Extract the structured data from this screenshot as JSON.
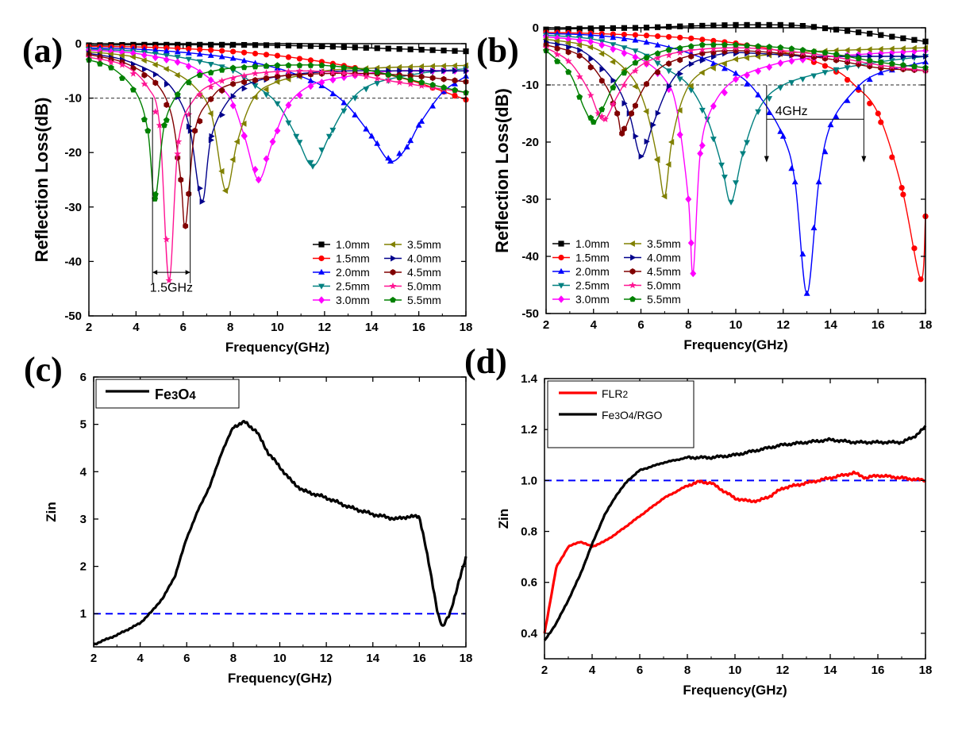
{
  "chart_data": [
    {
      "panel": "(a)",
      "type": "line",
      "xlabel": "Frequency(GHz)",
      "ylabel": "Reflection Loss(dB)",
      "xlim": [
        2,
        18
      ],
      "ylim": [
        -50,
        0
      ],
      "xticks": [
        "2",
        "4",
        "6",
        "8",
        "10",
        "12",
        "14",
        "16",
        "18"
      ],
      "yticks": [
        "0",
        "-10",
        "-20",
        "-30",
        "-40",
        "-50"
      ],
      "ref_line": -10,
      "annotation": "1.5GHz",
      "series": [
        {
          "name": "1.0mm",
          "color": "#000000",
          "marker": "square",
          "x": [
            2,
            4,
            6,
            8,
            10,
            12,
            14,
            16,
            18
          ],
          "y": [
            -0.3,
            -0.2,
            -0.2,
            -0.2,
            -0.3,
            -0.5,
            -0.8,
            -1.1,
            -1.4
          ]
        },
        {
          "name": "1.5mm",
          "color": "#ff0000",
          "marker": "circle",
          "x": [
            2,
            4,
            6,
            8,
            10,
            12,
            14,
            16,
            18
          ],
          "y": [
            -0.5,
            -0.6,
            -0.9,
            -1.4,
            -2.2,
            -3.4,
            -5.0,
            -7.2,
            -10.3
          ]
        },
        {
          "name": "2.0mm",
          "color": "#0000ff",
          "marker": "triangle-up",
          "x": [
            2,
            4,
            6,
            8,
            10,
            11,
            12,
            13,
            14,
            14.8,
            15.5,
            16,
            17,
            18
          ],
          "y": [
            -0.8,
            -1.0,
            -1.6,
            -2.6,
            -4.5,
            -6.0,
            -8.0,
            -11.5,
            -17,
            -21.6,
            -19,
            -15,
            -9,
            -6
          ]
        },
        {
          "name": "2.5mm",
          "color": "#008080",
          "marker": "triangle-down",
          "x": [
            2,
            4,
            6,
            8,
            9,
            10,
            10.8,
            11.5,
            12.2,
            13,
            14,
            16,
            18
          ],
          "y": [
            -1.0,
            -1.4,
            -2.6,
            -4.6,
            -7.5,
            -11,
            -17,
            -22.5,
            -17,
            -11,
            -7.5,
            -5.5,
            -4.6
          ]
        },
        {
          "name": "3.0mm",
          "color": "#ff00ff",
          "marker": "diamond",
          "x": [
            2,
            4,
            6,
            7,
            8,
            8.6,
            9.2,
            9.8,
            10.5,
            11.5,
            13,
            15,
            18
          ],
          "y": [
            -1.2,
            -1.8,
            -3.6,
            -6,
            -10,
            -17,
            -25,
            -18,
            -11,
            -7.5,
            -6,
            -5,
            -5
          ]
        },
        {
          "name": "3.5mm",
          "color": "#808000",
          "marker": "triangle-left",
          "x": [
            2,
            4,
            5.5,
            6.5,
            7.2,
            7.8,
            8.3,
            9,
            10,
            12,
            14,
            16,
            18
          ],
          "y": [
            -1.5,
            -2.5,
            -5,
            -8,
            -13,
            -27,
            -18,
            -10,
            -7,
            -5,
            -4.5,
            -4.2,
            -4
          ]
        },
        {
          "name": "4.0mm",
          "color": "#00008b",
          "marker": "triangle-right",
          "x": [
            2,
            3.5,
            5,
            5.8,
            6.3,
            6.8,
            7.2,
            8,
            9,
            11,
            13,
            15,
            18
          ],
          "y": [
            -1.8,
            -3,
            -6,
            -10,
            -16,
            -29,
            -17,
            -10,
            -7,
            -5.5,
            -5,
            -5,
            -5
          ]
        },
        {
          "name": "4.5mm",
          "color": "#800000",
          "marker": "hexagon",
          "x": [
            2,
            3.5,
            4.8,
            5.5,
            5.9,
            6.1,
            6.5,
            7.2,
            8,
            10,
            12,
            14,
            16,
            18
          ],
          "y": [
            -2,
            -3.5,
            -7,
            -13,
            -25,
            -33.5,
            -16,
            -10,
            -7.5,
            -6,
            -5.5,
            -5.5,
            -6,
            -7
          ]
        },
        {
          "name": "5.0mm",
          "color": "#ff1493",
          "marker": "star",
          "x": [
            2,
            3.5,
            4.5,
            5,
            5.4,
            5.8,
            6.5,
            7.5,
            9,
            11,
            13,
            15,
            18
          ],
          "y": [
            -2.5,
            -4,
            -8,
            -15,
            -43.5,
            -18,
            -10,
            -7,
            -5.5,
            -5,
            -5.5,
            -7,
            -9
          ]
        },
        {
          "name": "5.5mm",
          "color": "#008000",
          "marker": "pentagon",
          "x": [
            2,
            3,
            4,
            4.5,
            4.8,
            5.2,
            5.8,
            6.5,
            8,
            10,
            12,
            14,
            16,
            18
          ],
          "y": [
            -3,
            -4.5,
            -9,
            -16,
            -28.5,
            -15,
            -9,
            -6,
            -4.5,
            -4,
            -4,
            -5,
            -7,
            -9
          ]
        }
      ]
    },
    {
      "panel": "(b)",
      "type": "line",
      "xlabel": "Frequency(GHz)",
      "ylabel": "Reflection Loss(dB)",
      "xlim": [
        2,
        18
      ],
      "ylim": [
        -50,
        0
      ],
      "xticks": [
        "2",
        "4",
        "6",
        "8",
        "10",
        "12",
        "14",
        "16",
        "18"
      ],
      "yticks": [
        "0",
        "-10",
        "-20",
        "-30",
        "-40",
        "-50"
      ],
      "ref_line": -10,
      "annotation": "4GHz",
      "series": [
        {
          "name": "1.0mm",
          "color": "#000000",
          "marker": "square",
          "x": [
            2,
            4,
            6,
            8,
            10,
            12,
            13,
            14,
            16,
            18
          ],
          "y": [
            -0.3,
            -0.1,
            0,
            0.3,
            0.5,
            0.5,
            0.3,
            -0.2,
            -1.2,
            -2.4
          ]
        },
        {
          "name": "1.5mm",
          "color": "#ff0000",
          "marker": "circle",
          "x": [
            2,
            4,
            6,
            8,
            10,
            12,
            14,
            15,
            16,
            17,
            17.8,
            18
          ],
          "y": [
            -0.8,
            -1,
            -1.3,
            -1.8,
            -2.7,
            -4.2,
            -7,
            -10,
            -15,
            -28,
            -44,
            -33
          ]
        },
        {
          "name": "2.0mm",
          "color": "#0000ff",
          "marker": "triangle-up",
          "x": [
            2,
            4,
            6,
            8,
            10,
            11,
            12,
            12.5,
            13,
            13.5,
            14,
            15,
            16,
            18
          ],
          "y": [
            -1,
            -1.3,
            -2.3,
            -4.4,
            -8,
            -12,
            -19,
            -27,
            -46.5,
            -27,
            -17,
            -11,
            -8,
            -6
          ]
        },
        {
          "name": "2.5mm",
          "color": "#008080",
          "marker": "triangle-down",
          "x": [
            2,
            4,
            6,
            7,
            8,
            8.8,
            9.4,
            9.8,
            10.3,
            11,
            12,
            14,
            16,
            18
          ],
          "y": [
            -1.3,
            -2,
            -4.3,
            -7,
            -10,
            -16,
            -24,
            -30.5,
            -22,
            -14,
            -10,
            -7.5,
            -6,
            -5
          ]
        },
        {
          "name": "3.0mm",
          "color": "#ff00ff",
          "marker": "diamond",
          "x": [
            2,
            4,
            6,
            7,
            7.5,
            8,
            8.2,
            8.5,
            9,
            10,
            12,
            14,
            18
          ],
          "y": [
            -1.6,
            -2.5,
            -5.5,
            -9,
            -14,
            -30,
            -43,
            -22,
            -14,
            -9,
            -6,
            -5,
            -4
          ]
        },
        {
          "name": "3.5mm",
          "color": "#808000",
          "marker": "triangle-left",
          "x": [
            2,
            4,
            5.5,
            6.2,
            6.7,
            7,
            7.3,
            7.8,
            8.5,
            10,
            12,
            14,
            18
          ],
          "y": [
            -2,
            -3.5,
            -8,
            -14,
            -23,
            -29.5,
            -20,
            -12,
            -8,
            -5.5,
            -4.5,
            -4,
            -3.5
          ]
        },
        {
          "name": "4.0mm",
          "color": "#00008b",
          "marker": "triangle-right",
          "x": [
            2,
            3.5,
            4.8,
            5.5,
            6,
            6.5,
            7.2,
            8,
            9.5,
            11,
            13,
            15,
            18
          ],
          "y": [
            -2.5,
            -4,
            -9,
            -15,
            -22.5,
            -17,
            -10,
            -6.5,
            -4.5,
            -4.5,
            -5,
            -5,
            -5
          ]
        },
        {
          "name": "4.5mm",
          "color": "#800000",
          "marker": "hexagon",
          "x": [
            2,
            3.5,
            4.5,
            5,
            5.2,
            5.6,
            6.2,
            7,
            8.5,
            10,
            12,
            14,
            16,
            18
          ],
          "y": [
            -3,
            -5,
            -10,
            -15,
            -18.5,
            -15,
            -10,
            -6.5,
            -4.5,
            -4,
            -4.5,
            -5.5,
            -7,
            -7.5
          ]
        },
        {
          "name": "5.0mm",
          "color": "#ff1493",
          "marker": "star",
          "x": [
            2,
            3,
            3.8,
            4.2,
            4.5,
            5,
            5.6,
            6.5,
            8,
            10,
            12,
            14,
            16,
            18
          ],
          "y": [
            -3.5,
            -6,
            -11,
            -15,
            -16,
            -12,
            -8,
            -5.5,
            -4,
            -3.5,
            -4,
            -5,
            -6.5,
            -7.5
          ]
        },
        {
          "name": "5.5mm",
          "color": "#008000",
          "marker": "pentagon",
          "x": [
            2,
            3,
            3.6,
            4,
            4.4,
            5,
            5.8,
            7,
            8.5,
            10,
            12,
            14,
            16,
            18
          ],
          "y": [
            -4,
            -8,
            -14,
            -16.5,
            -14,
            -9,
            -6,
            -4,
            -3,
            -3,
            -3.5,
            -4.5,
            -6,
            -7
          ]
        }
      ]
    },
    {
      "panel": "(c)",
      "type": "line",
      "xlabel": "Frequency(GHz)",
      "ylabel": "Zin",
      "xlim": [
        2,
        18
      ],
      "ylim": [
        0.3,
        6
      ],
      "xticks": [
        "2",
        "4",
        "6",
        "8",
        "10",
        "12",
        "14",
        "16",
        "18"
      ],
      "yticks": [
        "1",
        "2",
        "3",
        "4",
        "5",
        "6"
      ],
      "ref_line": 1,
      "series": [
        {
          "name": "Fe3O4",
          "color": "#000000",
          "x": [
            2,
            3,
            4,
            4.5,
            5,
            5.5,
            6,
            6.5,
            7,
            7.5,
            8,
            8.5,
            9,
            9.5,
            10,
            10.5,
            11,
            12,
            13,
            14,
            15,
            15.5,
            16,
            16.2,
            16.5,
            16.8,
            17,
            17.3,
            17.6,
            18
          ],
          "y": [
            0.35,
            0.55,
            0.8,
            1.05,
            1.35,
            1.8,
            2.6,
            3.2,
            3.7,
            4.4,
            4.95,
            5.05,
            4.85,
            4.4,
            4.1,
            3.8,
            3.6,
            3.45,
            3.25,
            3.1,
            3.0,
            3.05,
            3.05,
            2.6,
            1.8,
            1.0,
            0.7,
            1.0,
            1.5,
            2.2
          ]
        }
      ]
    },
    {
      "panel": "(d)",
      "type": "line",
      "xlabel": "Frequency(GHz)",
      "ylabel": "Zin",
      "xlim": [
        2,
        18
      ],
      "ylim": [
        0.3,
        1.4
      ],
      "xticks": [
        "2",
        "4",
        "6",
        "8",
        "10",
        "12",
        "14",
        "16",
        "18"
      ],
      "yticks": [
        "0.4",
        "0.6",
        "0.8",
        "1.0",
        "1.2",
        "1.4"
      ],
      "ref_line": 1.0,
      "series": [
        {
          "name": "FLR2",
          "color": "#ff0000",
          "x": [
            2,
            2.5,
            3,
            3.5,
            4,
            4.5,
            5,
            6,
            7,
            8,
            8.5,
            9,
            9.5,
            10,
            10.5,
            11,
            11.5,
            12,
            13,
            14,
            15,
            15.5,
            16,
            17,
            18
          ],
          "y": [
            0.4,
            0.66,
            0.74,
            0.76,
            0.74,
            0.76,
            0.79,
            0.86,
            0.93,
            0.98,
            0.995,
            0.99,
            0.96,
            0.93,
            0.92,
            0.92,
            0.94,
            0.97,
            0.99,
            1.01,
            1.03,
            1.01,
            1.02,
            1.01,
            1.0
          ]
        },
        {
          "name": "Fe3O4/RGO",
          "color": "#000000",
          "x": [
            2,
            2.5,
            3,
            3.5,
            4,
            4.5,
            5,
            5.5,
            6,
            7,
            8,
            9,
            10,
            11,
            12,
            13,
            14,
            15,
            16,
            17,
            17.5,
            18
          ],
          "y": [
            0.37,
            0.44,
            0.53,
            0.63,
            0.75,
            0.86,
            0.94,
            1.0,
            1.04,
            1.07,
            1.09,
            1.09,
            1.1,
            1.12,
            1.14,
            1.15,
            1.16,
            1.15,
            1.15,
            1.15,
            1.17,
            1.21
          ]
        }
      ]
    }
  ],
  "panels": {
    "a": {
      "label": "(a)",
      "legend": [
        "1.0mm",
        "3.5mm",
        "1.5mm",
        "4.0mm",
        "2.0mm",
        "4.5mm",
        "2.5mm",
        "5.0mm",
        "3.0mm",
        "5.5mm"
      ]
    },
    "b": {
      "label": "(b)"
    },
    "c": {
      "label": "(c)",
      "legend_text": "Fe3O4"
    },
    "d": {
      "label": "(d)",
      "legend": [
        "FLR2",
        "Fe3O4/RGO"
      ]
    }
  },
  "colors": {
    "ref_line_a": "#555555",
    "ref_line_cd": "#0000ff"
  }
}
